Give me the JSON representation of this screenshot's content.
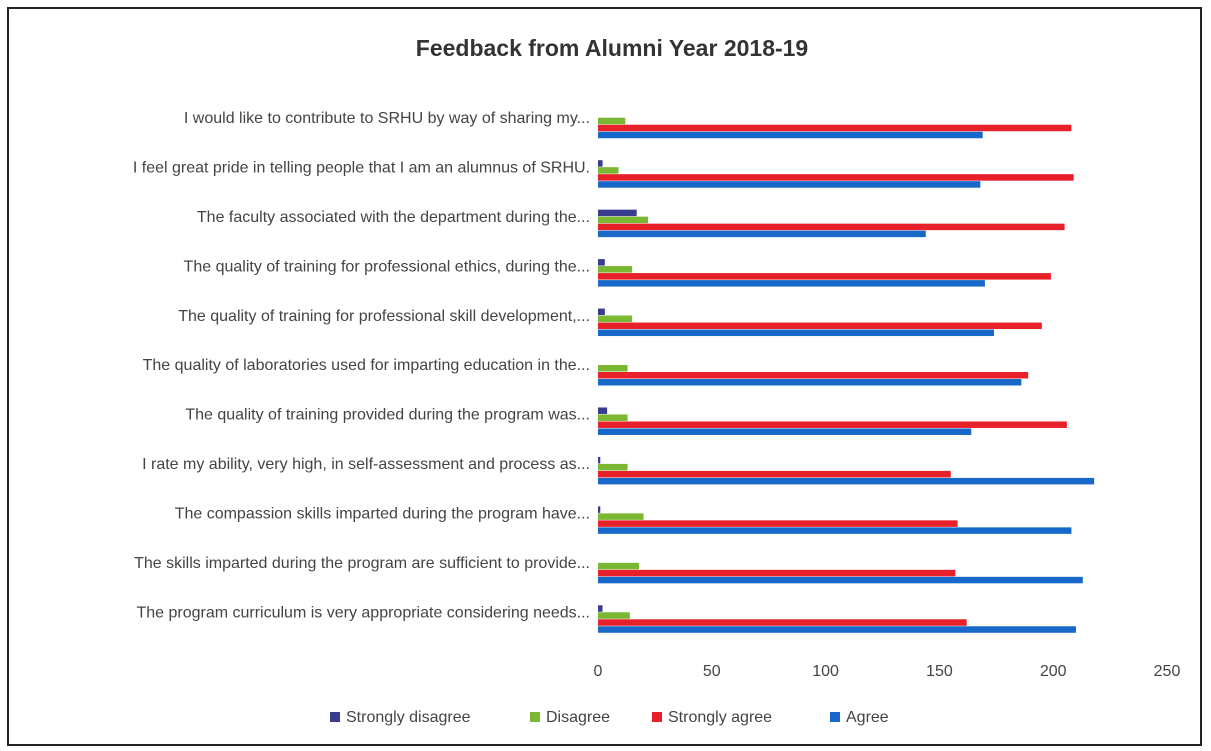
{
  "chart_data": {
    "type": "bar",
    "orientation": "horizontal",
    "title": "Feedback from Alumni Year 2018-19",
    "categories": [
      "I would like to contribute to SRHU by way of sharing my...",
      "I feel great pride in telling people that I am an alumnus of SRHU.",
      "The faculty associated with the department during the...",
      "The quality of training for professional ethics, during the...",
      "The quality of training for professional skill development,...",
      "The quality of laboratories used for imparting education in the...",
      "The quality of training provided during the program was...",
      "I rate my ability, very high, in self-assessment and process as...",
      "The compassion skills imparted during the program have...",
      "The skills imparted during the program are sufficient to provide...",
      "The program curriculum is very appropriate considering needs..."
    ],
    "series": [
      {
        "name": "Strongly disagree",
        "color": "#3a3d8f",
        "values": [
          0,
          2,
          17,
          3,
          3,
          0,
          4,
          1,
          1,
          0,
          2
        ]
      },
      {
        "name": "Disagree",
        "color": "#7ab833",
        "values": [
          12,
          9,
          22,
          15,
          15,
          13,
          13,
          13,
          20,
          18,
          14
        ]
      },
      {
        "name": "Strongly agree",
        "color": "#e8202a",
        "values": [
          208,
          209,
          205,
          199,
          195,
          189,
          206,
          155,
          158,
          157,
          162
        ]
      },
      {
        "name": "Agree",
        "color": "#1768c8",
        "values": [
          169,
          168,
          144,
          170,
          174,
          186,
          164,
          218,
          208,
          213,
          210
        ]
      }
    ],
    "xlim": [
      0,
      250
    ],
    "xticks": [
      0,
      50,
      100,
      150,
      200,
      250
    ],
    "legend": "bottom",
    "grid": false
  }
}
